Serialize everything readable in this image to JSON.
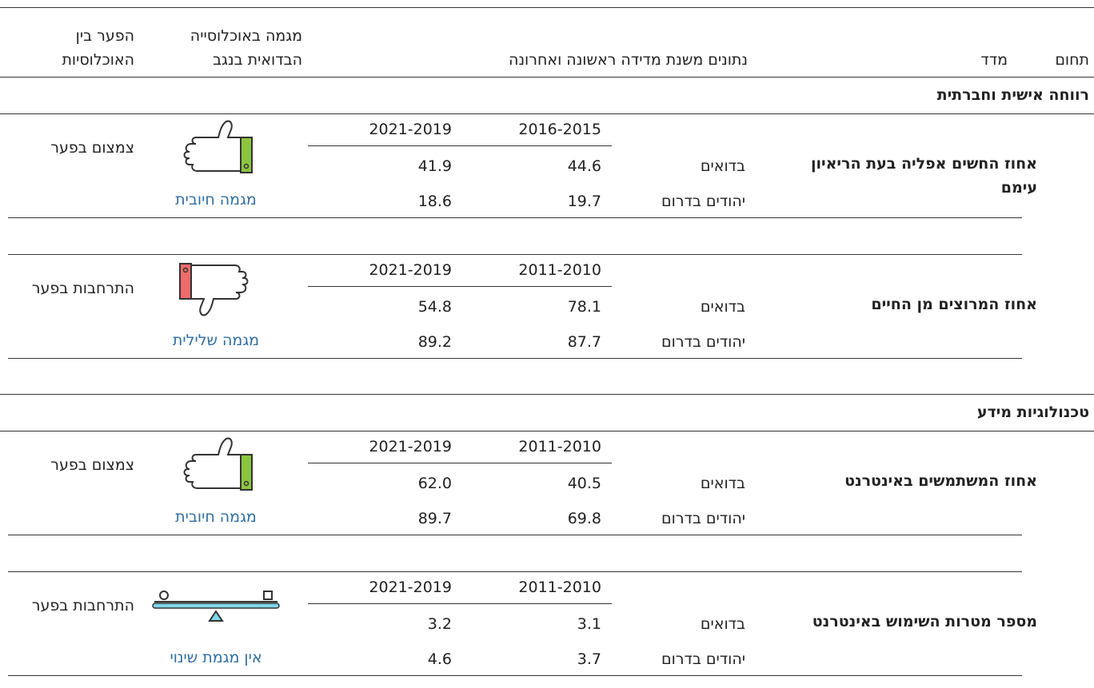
{
  "headers": [
    "תחום",
    "מדד",
    "נתונים משנת מדידה ראשונה ואחרונה",
    "מגמה באוכלוסייה הבדואית בנגב",
    "הפער בין האוכלוסיות"
  ],
  "sections": [
    {
      "title": "רווחה אישית וחברתית",
      "rows": [
        {
          "indicator": "אחוז החשים אפליה בעת הריאיון עימם",
          "years": [
            "2016-2015",
            "2021-2019"
          ],
          "groups": [
            {
              "name": "בדואים",
              "values": [
                "44.6",
                "41.9"
              ]
            },
            {
              "name": "יהודים בדרום",
              "values": [
                "19.7",
                "18.6"
              ]
            }
          ],
          "trend": "מגמה חיובית",
          "gap": "צמצום בפער"
        },
        {
          "indicator": "אחוז המרוצים מן החיים",
          "years": [
            "2011-2010",
            "2021-2019"
          ],
          "groups": [
            {
              "name": "בדואים",
              "values": [
                "78.1",
                "54.8"
              ]
            },
            {
              "name": "יהודים בדרום",
              "values": [
                "87.7",
                "89.2"
              ]
            }
          ],
          "trend": "מגמה שלילית",
          "gap": "התרחבות בפער"
        }
      ]
    },
    {
      "title": "טכנולוגיות מידע",
      "rows": [
        {
          "indicator": "אחוז המשתמשים באינטרנט",
          "years": [
            "2011-2010",
            "2021-2019"
          ],
          "groups": [
            {
              "name": "בדואים",
              "values": [
                "40.5",
                "62.0"
              ]
            },
            {
              "name": "יהודים בדרום",
              "values": [
                "69.8",
                "89.7"
              ]
            }
          ],
          "trend": "מגמה חיובית",
          "gap": "צמצום בפער"
        },
        {
          "indicator": "מספר מטרות השימוש באינטרנט",
          "years": [
            "2011-2010",
            "2021-2019"
          ],
          "groups": [
            {
              "name": "בדואים",
              "values": [
                "3.1",
                "3.2"
              ]
            },
            {
              "name": "יהודים בדרום",
              "values": [
                "3.7",
                "4.6"
              ]
            }
          ],
          "trend": "אין מגמת שינוי",
          "gap": "התרחבות בפער"
        }
      ]
    }
  ]
}
